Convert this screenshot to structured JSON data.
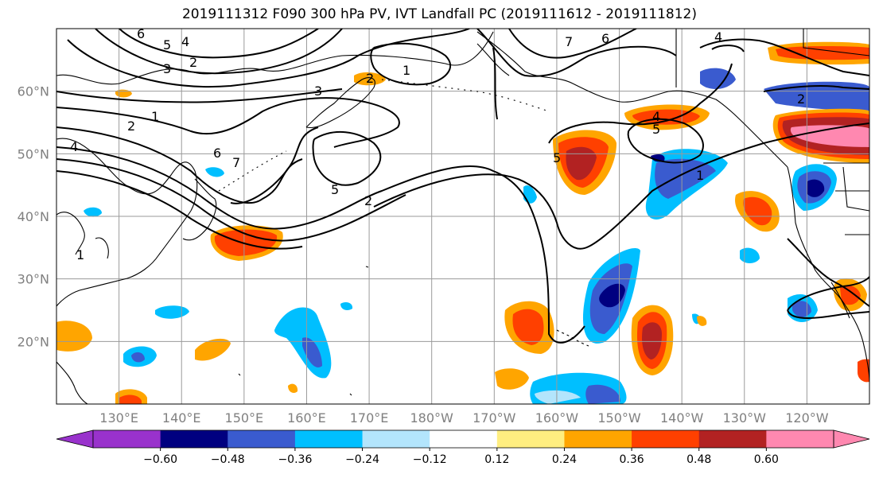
{
  "title": "2019111312 F090 300 hPa PV, IVT Landfall PC (2019111612 - 2019111812)",
  "map": {
    "lat_labels": [
      "60°N",
      "50°N",
      "40°N",
      "30°N",
      "20°N"
    ],
    "lat_values": [
      60,
      50,
      40,
      30,
      20
    ],
    "lon_labels": [
      "130°E",
      "140°E",
      "150°E",
      "160°E",
      "170°E",
      "180°W",
      "170°W",
      "160°W",
      "150°W",
      "140°W",
      "130°W",
      "120°W"
    ],
    "lon_values": [
      130,
      140,
      150,
      160,
      170,
      180,
      190,
      200,
      210,
      220,
      230,
      240
    ],
    "lon_range": [
      120,
      250
    ],
    "lat_range": [
      10,
      70
    ],
    "contour_labels": [
      "6",
      "5",
      "4",
      "3",
      "2",
      "1",
      "7",
      "6",
      "4",
      "1",
      "2",
      "3",
      "2",
      "1",
      "6",
      "7",
      "5",
      "2",
      "5",
      "4",
      "5",
      "1",
      "2",
      "4"
    ],
    "shading": {
      "neg_colors": [
        "#000080",
        "#3a5bcf",
        "#00bfff",
        "#b3e5fc"
      ],
      "pos_colors": [
        "#ffee80",
        "#ffa500",
        "#ff4000",
        "#b22222",
        "#ff88b0"
      ]
    }
  },
  "colorbar": {
    "labels": [
      "−0.60",
      "−0.48",
      "−0.36",
      "−0.24",
      "−0.12",
      "0.12",
      "0.24",
      "0.36",
      "0.48",
      "0.60"
    ],
    "colors": [
      "#9932cc",
      "#000080",
      "#3a5bcf",
      "#00bfff",
      "#b3e5fc",
      "#ffffff",
      "#ffee80",
      "#ffa500",
      "#ff4000",
      "#b22222",
      "#ff88b0",
      "#ff88b0"
    ]
  }
}
